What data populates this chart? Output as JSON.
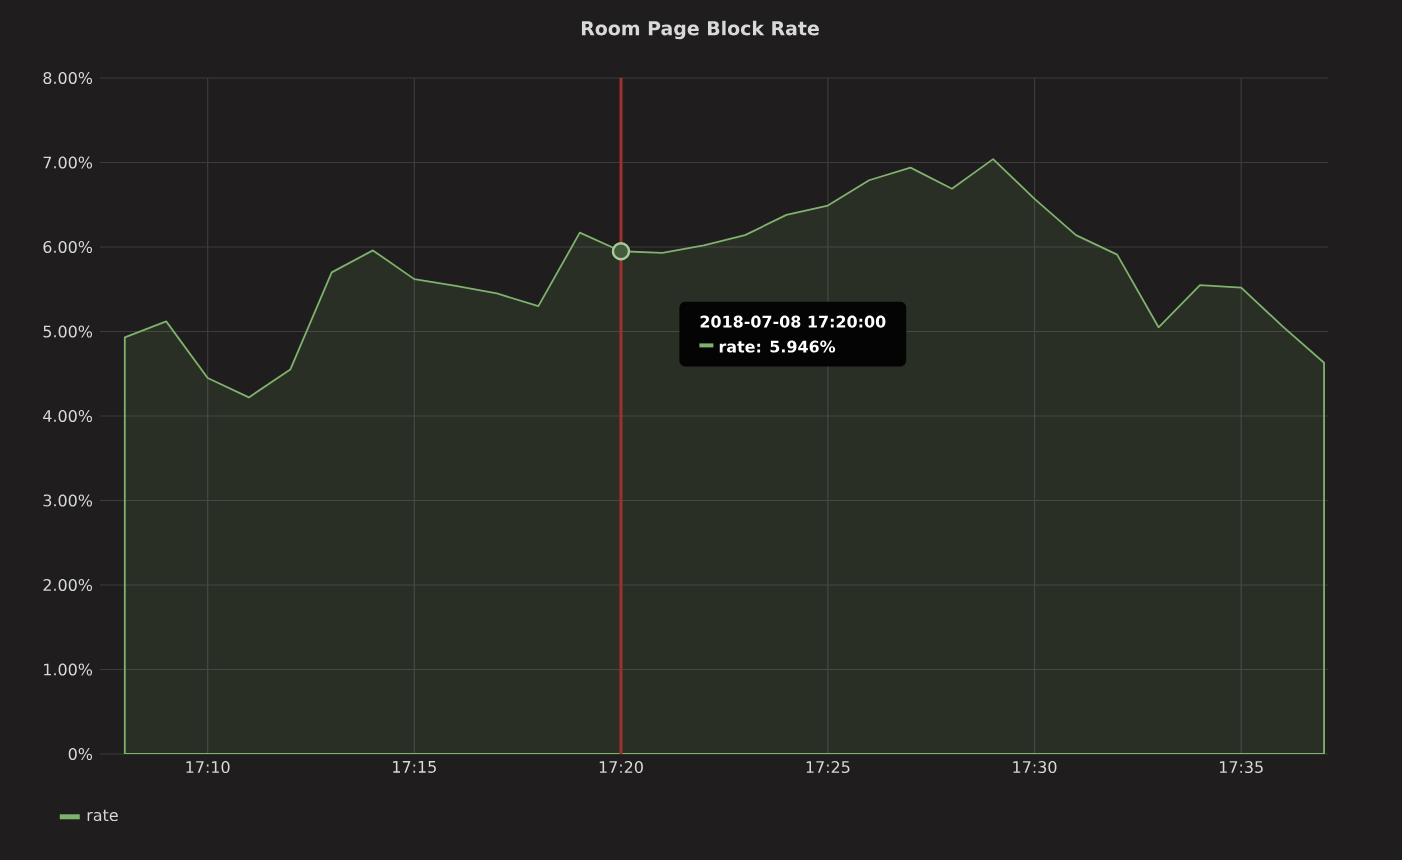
{
  "chart_data": {
    "type": "area",
    "title": "Room Page Block Rate",
    "x": [
      17.1333,
      17.15,
      17.1667,
      17.1833,
      17.2,
      17.2167,
      17.2333,
      17.25,
      17.2667,
      17.2833,
      17.3,
      17.3167,
      17.3333,
      17.35,
      17.3667,
      17.3833,
      17.4,
      17.4167,
      17.4333,
      17.45,
      17.4667,
      17.4833,
      17.5,
      17.5167,
      17.5333,
      17.55,
      17.5667,
      17.5833,
      17.6,
      17.6167
    ],
    "series": [
      {
        "name": "rate",
        "color": "#7eb26d",
        "values": [
          4.93,
          5.12,
          4.45,
          4.22,
          4.55,
          5.7,
          5.96,
          5.62,
          5.54,
          5.45,
          5.3,
          6.17,
          5.95,
          5.93,
          6.02,
          6.14,
          6.38,
          6.49,
          6.79,
          6.94,
          6.69,
          7.04,
          6.57,
          6.14,
          5.91,
          5.05,
          5.55,
          5.52,
          5.06,
          4.63
        ]
      }
    ],
    "xlim": [
      17.1233,
      17.6183
    ],
    "xticks": [
      {
        "value": 17.1667,
        "label": "17:10"
      },
      {
        "value": 17.25,
        "label": "17:15"
      },
      {
        "value": 17.3333,
        "label": "17:20"
      },
      {
        "value": 17.4167,
        "label": "17:25"
      },
      {
        "value": 17.5,
        "label": "17:30"
      },
      {
        "value": 17.5833,
        "label": "17:35"
      }
    ],
    "ylim": [
      0,
      8
    ],
    "yticks": [
      {
        "value": 0,
        "label": "0%"
      },
      {
        "value": 1,
        "label": "1.00%"
      },
      {
        "value": 2,
        "label": "2.00%"
      },
      {
        "value": 3,
        "label": "3.00%"
      },
      {
        "value": 4,
        "label": "4.00%"
      },
      {
        "value": 5,
        "label": "5.00%"
      },
      {
        "value": 6,
        "label": "6.00%"
      },
      {
        "value": 7,
        "label": "7.00%"
      },
      {
        "value": 8,
        "label": "8.00%"
      }
    ],
    "ref_lines": [
      {
        "axis": "x",
        "value": 17.3333,
        "color": "#a0302c"
      }
    ],
    "annotations": [
      "2018-07-08 17:20:00",
      "rate: 5.946%"
    ],
    "grid": true,
    "legend": "bottom left"
  }
}
